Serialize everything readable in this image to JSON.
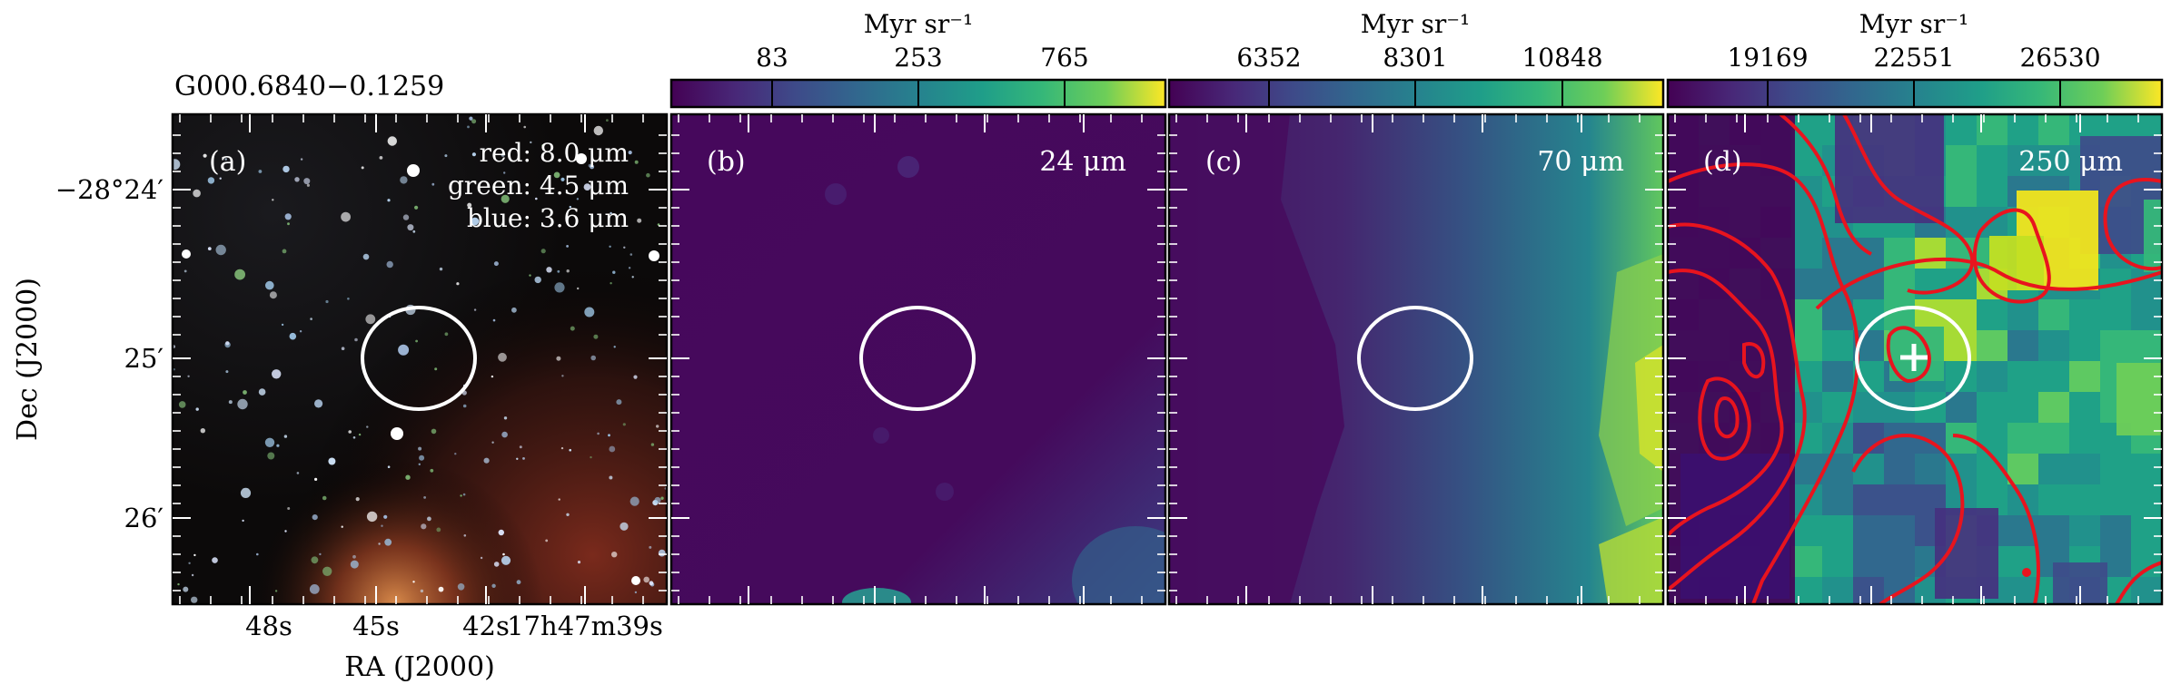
{
  "source_name": "G000.6840−0.1259",
  "axes": {
    "ylabel": "Dec (J2000)",
    "xlabel": "RA (J2000)",
    "dec_ticks": [
      "−28°24′",
      "25′",
      "26′"
    ],
    "ra_ticks": [
      "48s",
      "45s",
      "42s",
      "17h47m39s"
    ]
  },
  "panels": [
    {
      "id": "a",
      "label": "(a)",
      "legend": [
        "red: 8.0 μm",
        "green: 4.5 μm",
        "blue: 3.6 μm"
      ],
      "colorbar": null
    },
    {
      "id": "b",
      "label": "(b)",
      "wavelength": "24 μm",
      "colorbar": {
        "unit": "Myr sr⁻¹",
        "ticks": [
          "83",
          "253",
          "765"
        ]
      }
    },
    {
      "id": "c",
      "label": "(c)",
      "wavelength": "70 μm",
      "colorbar": {
        "unit": "Myr sr⁻¹",
        "ticks": [
          "6352",
          "8301",
          "10848"
        ]
      }
    },
    {
      "id": "d",
      "label": "(d)",
      "wavelength": "250 μm",
      "colorbar": {
        "unit": "Myr sr⁻¹",
        "ticks": [
          "19169",
          "22551",
          "26530"
        ]
      }
    }
  ],
  "colors": {
    "circle": "#ffffff",
    "contour": "#e8141e",
    "marker": "#ffffff",
    "viridis_low": "#440154",
    "viridis_high": "#fde725"
  }
}
